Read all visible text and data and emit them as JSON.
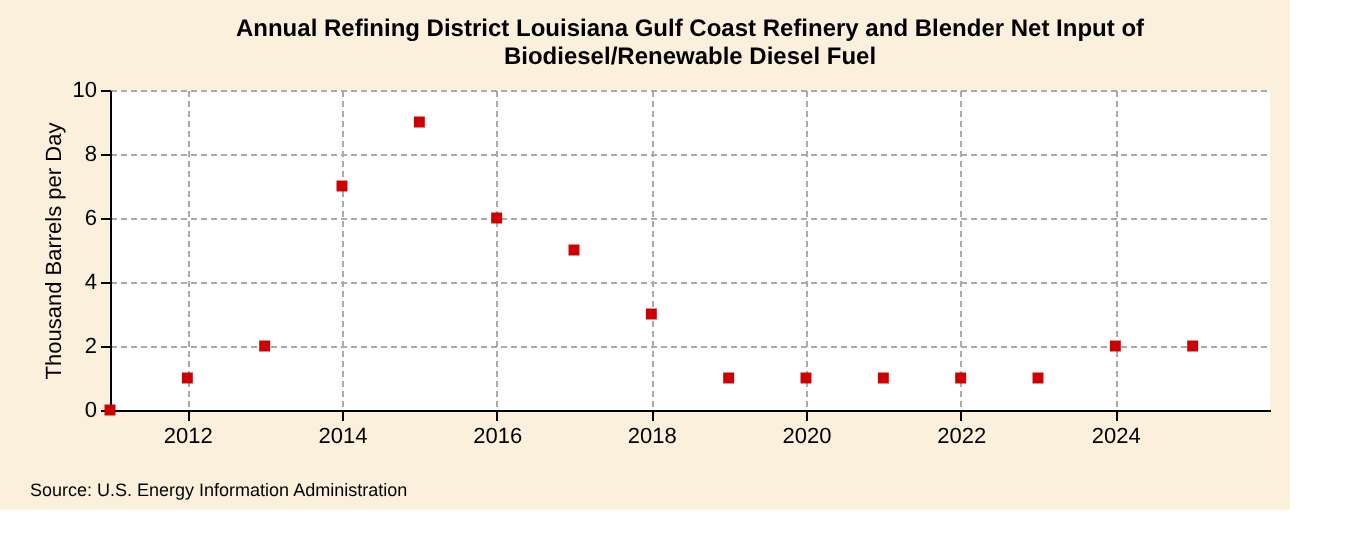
{
  "chart_data": {
    "type": "scatter",
    "title": "Annual Refining District Louisiana Gulf Coast Refinery and Blender Net Input of\nBiodiesel/Renewable Diesel Fuel",
    "ylabel": "Thousand Barrels per Day",
    "x": [
      2011,
      2012,
      2013,
      2014,
      2015,
      2016,
      2017,
      2018,
      2019,
      2020,
      2021,
      2022,
      2023,
      2024,
      2025
    ],
    "series": [
      {
        "color": "#cc0000",
        "values": [
          0,
          1,
          2,
          7,
          9,
          6,
          5,
          3,
          1,
          1,
          1,
          1,
          1,
          2,
          2
        ]
      }
    ],
    "xlim": [
      2011,
      2026
    ],
    "xticks": [
      2012,
      2014,
      2016,
      2018,
      2020,
      2022,
      2024
    ],
    "ylim": [
      0,
      10
    ],
    "yticks": [
      0,
      2,
      4,
      6,
      8,
      10
    ],
    "grid": true,
    "marker": "square",
    "legend": false,
    "annotations": [
      "Source: U.S. Energy Information Administration"
    ]
  }
}
